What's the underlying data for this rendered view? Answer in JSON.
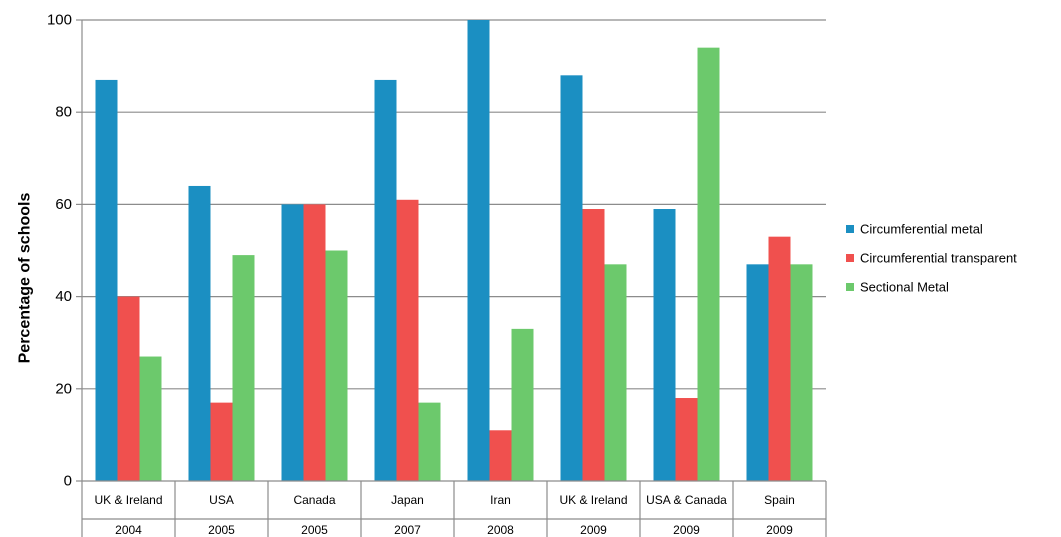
{
  "chart_data": {
    "type": "bar",
    "ylabel": "Percentage of schools",
    "xlabel": "",
    "ylim": [
      0,
      100
    ],
    "yticks": [
      0,
      20,
      40,
      60,
      80,
      100
    ],
    "grid": true,
    "legend_position": "right",
    "categories": [
      {
        "label": "UK & Ireland",
        "year": "2004"
      },
      {
        "label": "USA",
        "year": "2005"
      },
      {
        "label": "Canada",
        "year": "2005"
      },
      {
        "label": "Japan",
        "year": "2007"
      },
      {
        "label": "Iran",
        "year": "2008"
      },
      {
        "label": "UK & Ireland",
        "year": "2009"
      },
      {
        "label": "USA & Canada",
        "year": "2009"
      },
      {
        "label": "Spain",
        "year": "2009"
      }
    ],
    "series": [
      {
        "name": "Circumferential metal",
        "color": "#1b8fc2",
        "values": [
          87,
          64,
          60,
          87,
          100,
          88,
          59,
          47
        ]
      },
      {
        "name": "Circumferential transparent",
        "color": "#f0504e",
        "values": [
          40,
          17,
          60,
          61,
          11,
          59,
          18,
          53
        ]
      },
      {
        "name": "Sectional Metal",
        "color": "#6cc96c",
        "values": [
          27,
          49,
          50,
          17,
          33,
          47,
          94,
          47
        ]
      }
    ]
  }
}
